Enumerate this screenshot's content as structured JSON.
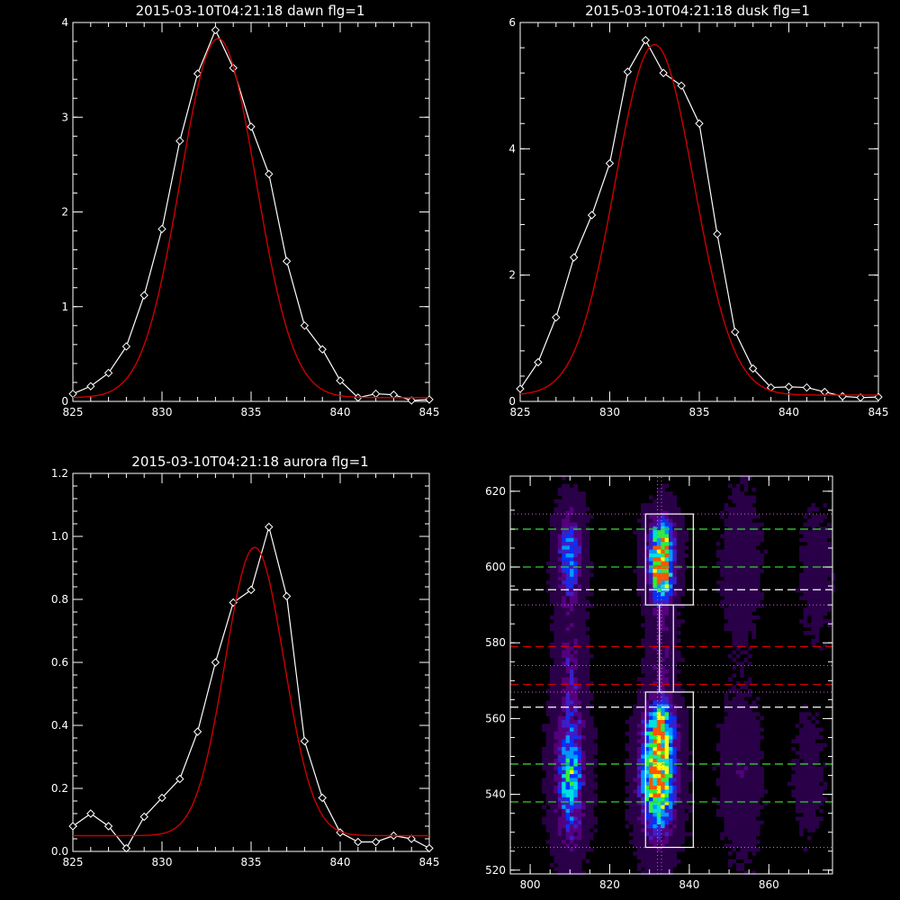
{
  "chart_data": [
    {
      "id": "dawn",
      "type": "line",
      "title": "2015-03-10T04:21:18 dawn flg=1",
      "xlim": [
        825,
        845
      ],
      "ylim": [
        0,
        4
      ],
      "x_ticks": [
        825,
        830,
        835,
        840,
        845
      ],
      "y_ticks": [
        {
          "v": 0,
          "label": "0"
        },
        {
          "v": 1,
          "label": "1"
        },
        {
          "v": 2,
          "label": "2"
        },
        {
          "v": 3,
          "label": "3"
        },
        {
          "v": 4,
          "label": "4"
        }
      ],
      "series": [
        {
          "kind": "observed",
          "color": "#ffffff",
          "marker": "diamond",
          "x": [
            825,
            826,
            827,
            828,
            829,
            830,
            831,
            832,
            833,
            834,
            835,
            836,
            837,
            838,
            839,
            840,
            841,
            842,
            843,
            844,
            845
          ],
          "y": [
            0.08,
            0.16,
            0.3,
            0.58,
            1.12,
            1.82,
            2.75,
            3.46,
            3.92,
            3.52,
            2.9,
            2.4,
            1.48,
            0.8,
            0.55,
            0.22,
            0.04,
            0.08,
            0.07,
            0.01,
            0.02
          ]
        },
        {
          "kind": "fit",
          "color": "#cc0000",
          "gauss": {
            "amp": 3.79,
            "center": 833.15,
            "sigma": 2.12,
            "offset": 0.04
          }
        }
      ]
    },
    {
      "id": "dusk",
      "type": "line",
      "title": "2015-03-10T04:21:18 dusk flg=1",
      "xlim": [
        825,
        845
      ],
      "ylim": [
        0,
        6
      ],
      "x_ticks": [
        825,
        830,
        835,
        840,
        845
      ],
      "y_ticks": [
        {
          "v": 0,
          "label": "0"
        },
        {
          "v": 2,
          "label": "2"
        },
        {
          "v": 4,
          "label": "4"
        },
        {
          "v": 6,
          "label": "6"
        }
      ],
      "series": [
        {
          "kind": "observed",
          "color": "#ffffff",
          "marker": "diamond",
          "x": [
            825,
            826,
            827,
            828,
            829,
            830,
            831,
            832,
            833,
            834,
            835,
            836,
            837,
            838,
            839,
            840,
            841,
            842,
            843,
            844,
            845
          ],
          "y": [
            0.2,
            0.62,
            1.33,
            2.28,
            2.95,
            3.77,
            5.22,
            5.72,
            5.2,
            5.0,
            4.4,
            2.65,
            1.1,
            0.52,
            0.22,
            0.23,
            0.22,
            0.15,
            0.08,
            0.06,
            0.07
          ]
        },
        {
          "kind": "fit",
          "color": "#cc0000",
          "gauss": {
            "amp": 5.55,
            "center": 832.5,
            "sigma": 2.2,
            "offset": 0.1
          }
        }
      ]
    },
    {
      "id": "aurora",
      "type": "line",
      "title": "2015-03-10T04:21:18 aurora flg=1",
      "xlim": [
        825,
        845
      ],
      "ylim": [
        0,
        1.2
      ],
      "x_ticks": [
        825,
        830,
        835,
        840,
        845
      ],
      "y_ticks": [
        {
          "v": 0,
          "label": "0.0"
        },
        {
          "v": 0.2,
          "label": "0.2"
        },
        {
          "v": 0.4,
          "label": "0.4"
        },
        {
          "v": 0.6,
          "label": "0.6"
        },
        {
          "v": 0.8,
          "label": "0.8"
        },
        {
          "v": 1.0,
          "label": "1.0"
        },
        {
          "v": 1.2,
          "label": "1.2"
        }
      ],
      "series": [
        {
          "kind": "observed",
          "color": "#ffffff",
          "marker": "diamond",
          "x": [
            825,
            826,
            827,
            828,
            829,
            830,
            831,
            832,
            833,
            834,
            835,
            836,
            837,
            838,
            839,
            840,
            841,
            842,
            843,
            844,
            845
          ],
          "y": [
            0.08,
            0.12,
            0.08,
            0.01,
            0.11,
            0.17,
            0.23,
            0.38,
            0.6,
            0.79,
            0.83,
            1.03,
            0.81,
            0.35,
            0.17,
            0.06,
            0.03,
            0.03,
            0.05,
            0.04,
            0.01
          ]
        },
        {
          "kind": "fit",
          "color": "#cc0000",
          "gauss": {
            "amp": 0.915,
            "center": 835.2,
            "sigma": 1.65,
            "offset": 0.05
          }
        }
      ]
    },
    {
      "id": "image",
      "type": "heatmap",
      "title": "",
      "xlim": [
        795,
        876
      ],
      "ylim": [
        519,
        624
      ],
      "x_ticks": [
        800,
        820,
        840,
        860
      ],
      "y_ticks": [
        520,
        540,
        560,
        580,
        600,
        620
      ],
      "colormap": [
        "#000000",
        "#2a0048",
        "#55007f",
        "#3b1fc8",
        "#0033ff",
        "#0099ff",
        "#00e0e0",
        "#33ee33",
        "#ffff00",
        "#ff5500"
      ],
      "blobs": [
        {
          "x": 810,
          "y": 603,
          "sx": 2.2,
          "sy": 8,
          "amp": 0.52
        },
        {
          "x": 810,
          "y": 545,
          "sx": 2.6,
          "sy": 12,
          "amp": 0.62
        },
        {
          "x": 810,
          "y": 575,
          "sx": 2.2,
          "sy": 10,
          "amp": 0.22
        },
        {
          "x": 833,
          "y": 605,
          "sx": 2.3,
          "sy": 6,
          "amp": 0.8
        },
        {
          "x": 833,
          "y": 597,
          "sx": 2.2,
          "sy": 5,
          "amp": 0.6
        },
        {
          "x": 833,
          "y": 578,
          "sx": 2.2,
          "sy": 10,
          "amp": 0.2
        },
        {
          "x": 832,
          "y": 544,
          "sx": 3,
          "sy": 10,
          "amp": 1.0
        },
        {
          "x": 833,
          "y": 558,
          "sx": 2.5,
          "sy": 5,
          "amp": 0.55
        },
        {
          "x": 853,
          "y": 600,
          "sx": 2.8,
          "sy": 12,
          "amp": 0.14
        },
        {
          "x": 853,
          "y": 545,
          "sx": 3,
          "sy": 12,
          "amp": 0.16
        },
        {
          "x": 872,
          "y": 598,
          "sx": 2.5,
          "sy": 10,
          "amp": 0.1
        },
        {
          "x": 870,
          "y": 545,
          "sx": 2.5,
          "sy": 10,
          "amp": 0.08
        }
      ],
      "dotted_hlines": {
        "color": "#cc66cc",
        "y": [
          614,
          590,
          574,
          567,
          526
        ],
        "x_range": [
          795,
          876
        ]
      },
      "dotted_vlines": {
        "color": "#cc66cc",
        "x": [
          832,
          833
        ],
        "y_range": [
          519,
          624
        ]
      },
      "dashed_lines": [
        {
          "y": 610,
          "color": "#33cc33"
        },
        {
          "y": 600,
          "color": "#33cc33"
        },
        {
          "y": 594,
          "color": "#ffffff"
        },
        {
          "y": 579,
          "color": "#cc0000"
        },
        {
          "y": 569,
          "color": "#cc0000"
        },
        {
          "y": 563,
          "color": "#ffffff"
        },
        {
          "y": 548,
          "color": "#33cc33"
        },
        {
          "y": 538,
          "color": "#33cc33"
        }
      ],
      "boxes": [
        {
          "x0": 829,
          "x1": 841,
          "y0": 590,
          "y1": 614
        },
        {
          "x0": 829,
          "x1": 841,
          "y0": 526,
          "y1": 567
        },
        {
          "x0": 832.5,
          "x1": 836,
          "y0": 567,
          "y1": 590
        }
      ]
    }
  ]
}
